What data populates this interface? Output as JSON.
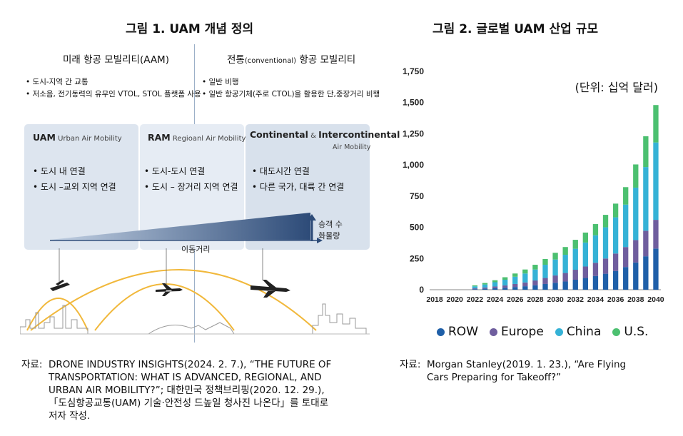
{
  "figure1": {
    "title": "그림 1. UAM 개념 정의",
    "left_header": "미래 항공 모빌리티(AAM)",
    "right_header_prefix": "전통",
    "right_header_small": "(conventional)",
    "right_header_suffix": " 항공 모빌리티",
    "left_bullets": [
      "도시-지역 간 교통",
      "저소음, 전기동력의 유무인 VTOL, STOL 플랫폼 사용"
    ],
    "right_bullets": [
      "일반 비행",
      "일반 항공기체(주로 CTOL)을 활용한 단,중장거리 비행"
    ],
    "boxes": [
      {
        "title": "UAM",
        "subtitle": " Urban Air Mobility",
        "items": [
          "도시 내 연결",
          "도시 –교외 지역 연결"
        ]
      },
      {
        "title": "RAM",
        "subtitle": " Regioanl Air Mobility",
        "items": [
          "도시-도시 연결",
          "도시 – 장거리 지역 연결"
        ]
      },
      {
        "title": "Continental",
        "title_mid": " & ",
        "title_end": "Intercontinental",
        "subtitle": "Air Mobility",
        "items": [
          "대도시간 연결",
          "다른 국가, 대륙 간 연결"
        ]
      }
    ],
    "axis_x_label": "이동거리",
    "axis_y_label_1": "승객 수",
    "axis_y_label_2": "화물량",
    "source_label": "자료:",
    "source_lines": [
      "DRONE INDUSTRY INSIGHTS(2024. 2. 7.), “THE FUTURE OF",
      "TRANSPORTATION: WHAT IS ADVANCED, REGIONAL, AND",
      "URBAN AIR MOBILITY?”; 대한민국 정책브리핑(2020. 12. 29.),",
      "「도심항공교통(UAM) 기술·안전성 드높일 청사진 나온다」를 토대로",
      "저자 작성."
    ]
  },
  "figure2": {
    "title": "그림 2. 글로벌 UAM 산업 규모",
    "source_label": "자료:",
    "source_lines": [
      "Morgan Stanley(2019. 1. 23.), “Are Flying",
      "Cars Preparing for Takeoff?”"
    ]
  },
  "chart_data": {
    "type": "bar",
    "stacked": true,
    "title": "그림 2. 글로벌 UAM 산업 규모",
    "unit_label": "(단위: 십억 달러)",
    "xlabel": "",
    "ylabel": "",
    "ylim": [
      0,
      1750
    ],
    "yticks": [
      0,
      250,
      500,
      750,
      1000,
      1250,
      1500,
      1750
    ],
    "ytick_labels": [
      "0",
      "250",
      "500",
      "750",
      "1,000",
      "1,250",
      "1,500",
      "1,750"
    ],
    "categories": [
      2018,
      2019,
      2020,
      2021,
      2022,
      2023,
      2024,
      2025,
      2026,
      2027,
      2028,
      2029,
      2030,
      2031,
      2032,
      2033,
      2034,
      2035,
      2036,
      2037,
      2038,
      2039,
      2040
    ],
    "xtick_labels": [
      "2018",
      "2020",
      "2022",
      "2024",
      "2026",
      "2028",
      "2030",
      "2032",
      "2034",
      "2036",
      "2038",
      "2040"
    ],
    "series": [
      {
        "name": "ROW",
        "color": "#1f5fa8",
        "values": [
          0,
          0,
          0,
          0,
          5,
          8,
          12,
          16,
          22,
          28,
          36,
          46,
          56,
          66,
          80,
          94,
          110,
          128,
          150,
          182,
          218,
          268,
          330
        ]
      },
      {
        "name": "Europe",
        "color": "#6f5e9e",
        "values": [
          0,
          0,
          0,
          0,
          6,
          10,
          14,
          18,
          24,
          30,
          38,
          48,
          58,
          68,
          80,
          92,
          106,
          122,
          140,
          160,
          180,
          205,
          230
        ]
      },
      {
        "name": "China",
        "color": "#35b2d6",
        "values": [
          0,
          0,
          0,
          0,
          16,
          24,
          34,
          46,
          58,
          72,
          88,
          106,
          128,
          146,
          168,
          192,
          220,
          250,
          290,
          340,
          420,
          510,
          620
        ]
      },
      {
        "name": "U.S.",
        "color": "#4cc070",
        "values": [
          0,
          0,
          0,
          0,
          8,
          12,
          16,
          20,
          26,
          32,
          38,
          46,
          54,
          62,
          72,
          80,
          90,
          100,
          110,
          140,
          186,
          247,
          300
        ]
      }
    ],
    "legend_position": "bottom",
    "grid": false
  }
}
